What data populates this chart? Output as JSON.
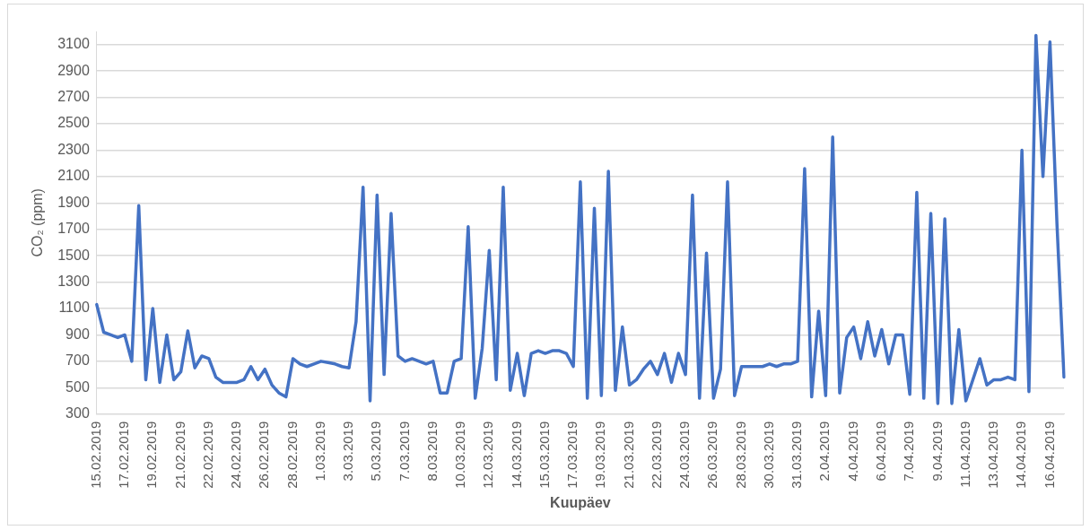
{
  "chart_data": {
    "type": "line",
    "xlabel": "Kuupäev",
    "ylabel": "CO₂ (ppm)",
    "categories": [
      "15.02.2019",
      null,
      null,
      null,
      "17.02.2019",
      null,
      null,
      null,
      "19.02.2019",
      null,
      null,
      null,
      "21.02.2019",
      null,
      null,
      null,
      "22.02.2019",
      null,
      null,
      null,
      "24.02.2019",
      null,
      null,
      null,
      "26.02.2019",
      null,
      null,
      null,
      "28.02.2019",
      null,
      null,
      null,
      "1.03.2019",
      null,
      null,
      null,
      "3.03.2019",
      null,
      null,
      null,
      "5.03.2019",
      null,
      null,
      null,
      "7.03.2019",
      null,
      null,
      null,
      "8.03.2019",
      null,
      null,
      null,
      "10.03.2019",
      null,
      null,
      null,
      "12.03.2019",
      null,
      null,
      null,
      "14.03.2019",
      null,
      null,
      null,
      "15.03.2019",
      null,
      null,
      null,
      "17.03.2019",
      null,
      null,
      null,
      "19.03.2019",
      null,
      null,
      null,
      "21.03.2019",
      null,
      null,
      null,
      "22.03.2019",
      null,
      null,
      null,
      "24.03.2019",
      null,
      null,
      null,
      "26.03.2019",
      null,
      null,
      null,
      "28.03.2019",
      null,
      null,
      null,
      "30.03.2019",
      null,
      null,
      null,
      "31.03.2019",
      null,
      null,
      null,
      "2.04.2019",
      null,
      null,
      null,
      "4.04.2019",
      null,
      null,
      null,
      "6.04.2019",
      null,
      null,
      null,
      "7.04.2019",
      null,
      null,
      null,
      "9.04.2019",
      null,
      null,
      null,
      "11.04.2019",
      null,
      null,
      null,
      "13.04.2019",
      null,
      null,
      null,
      "14.04.2019",
      null,
      null,
      null,
      "16.04.2019",
      null,
      null
    ],
    "series": [
      {
        "color": "#4472c4",
        "values": [
          1130,
          920,
          900,
          880,
          900,
          700,
          1880,
          560,
          1100,
          540,
          900,
          560,
          620,
          930,
          650,
          740,
          720,
          580,
          540,
          540,
          540,
          560,
          660,
          560,
          640,
          520,
          460,
          430,
          720,
          680,
          660,
          680,
          700,
          690,
          680,
          660,
          650,
          1000,
          2020,
          400,
          1960,
          600,
          1820,
          740,
          700,
          720,
          700,
          680,
          700,
          460,
          460,
          700,
          720,
          1720,
          420,
          800,
          1540,
          560,
          2020,
          480,
          760,
          440,
          760,
          780,
          760,
          780,
          780,
          760,
          660,
          2060,
          420,
          1860,
          440,
          2140,
          480,
          960,
          520,
          560,
          640,
          700,
          600,
          760,
          540,
          760,
          600,
          1960,
          420,
          1520,
          420,
          640,
          2060,
          440,
          660,
          660,
          660,
          660,
          680,
          660,
          680,
          680,
          700,
          2160,
          430,
          1080,
          440,
          2400,
          460,
          880,
          960,
          720,
          1000,
          740,
          940,
          680,
          900,
          900,
          450,
          1980,
          420,
          1820,
          380,
          1780,
          380,
          940,
          400,
          560,
          720,
          520,
          560,
          560,
          580,
          560,
          2300,
          470,
          3170,
          2100,
          3120,
          1740,
          580
        ]
      }
    ],
    "ylim": [
      300,
      3200
    ],
    "yticks": [
      300,
      500,
      700,
      900,
      1100,
      1300,
      1500,
      1700,
      1900,
      2100,
      2300,
      2500,
      2700,
      2900,
      3100
    ],
    "grid": "y",
    "legend": false,
    "marker": "none",
    "line_style": "solid"
  }
}
